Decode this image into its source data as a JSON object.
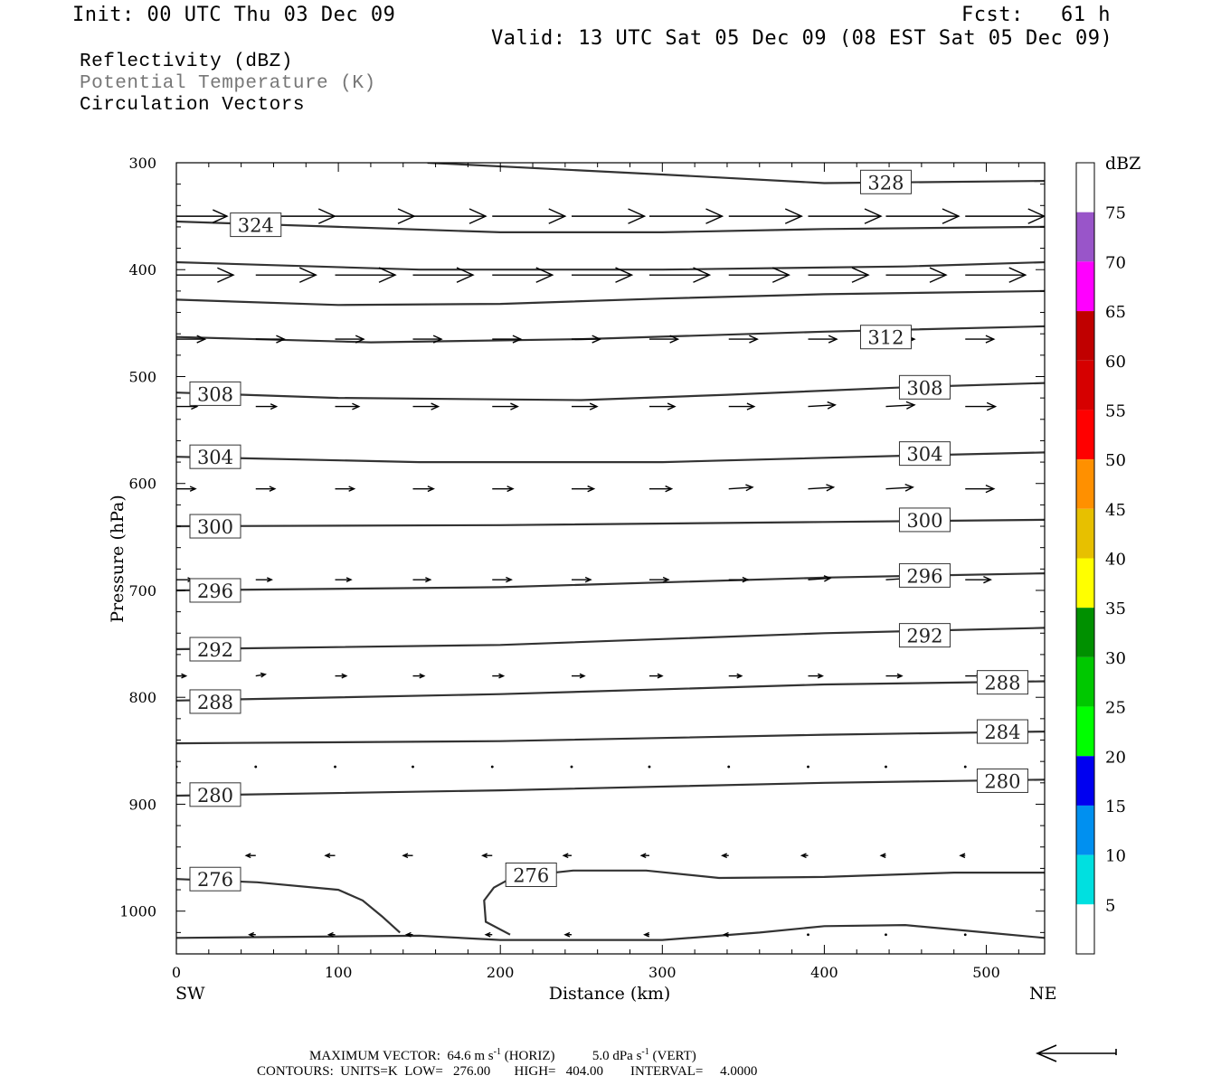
{
  "header": {
    "init": "Init: 00 UTC Thu 03 Dec 09",
    "fcst": "Fcst:   61 h",
    "valid": "Valid: 13 UTC Sat 05 Dec 09 (08 EST Sat 05 Dec 09)",
    "field1": "Reflectivity (dBZ)",
    "field2": "Potential Temperature (K)",
    "field3": "Circulation Vectors"
  },
  "footer": {
    "max_vector_prefix": "MAXIMUM VECTOR:  64.6 m s",
    "max_vector_horiz_unit": "(HORIZ)",
    "max_vector_vert": "5.0 dPa s",
    "max_vector_vert_unit": "(VERT)",
    "exponent": "-1",
    "contours": "CONTOURS:  UNITS=K  LOW=   276.00       HIGH=   404.00        INTERVAL=     4.0000"
  },
  "colors": {
    "contour": "#333333",
    "vector": "#000000",
    "frame": "#000000"
  },
  "chart_data": {
    "type": "contour-cross-section",
    "xlabel": "Distance (km)",
    "ylabel": "Pressure (hPa)",
    "x_ticks": [
      0,
      100,
      200,
      300,
      400,
      500
    ],
    "y_ticks": [
      300,
      400,
      500,
      600,
      700,
      800,
      900,
      1000
    ],
    "xlim": [
      0,
      536
    ],
    "ylim": [
      300,
      1040
    ],
    "y_inverted": true,
    "left_end_label": "SW",
    "right_end_label": "NE",
    "colorbar": {
      "title": "dBZ",
      "levels": [
        5,
        10,
        15,
        20,
        25,
        30,
        35,
        40,
        45,
        50,
        55,
        60,
        65,
        70,
        75
      ],
      "colors": [
        "#ffffff",
        "#00e0e0",
        "#0090f0",
        "#0000f0",
        "#00ff00",
        "#00c800",
        "#009000",
        "#ffff00",
        "#e7c000",
        "#ff9000",
        "#ff0000",
        "#d60000",
        "#c00000",
        "#ff00ff",
        "#9955c9",
        "#ffffff"
      ]
    },
    "isentropes": [
      {
        "theta": 328,
        "points": [
          [
            155,
            300
          ],
          [
            300,
            311
          ],
          [
            400,
            319
          ],
          [
            536,
            317
          ]
        ],
        "labels": [
          [
            438,
            318
          ]
        ]
      },
      {
        "theta": 324,
        "points": [
          [
            0,
            355
          ],
          [
            100,
            360
          ],
          [
            200,
            365
          ],
          [
            300,
            365
          ],
          [
            400,
            362
          ],
          [
            536,
            360
          ]
        ],
        "labels": [
          [
            49,
            358
          ]
        ]
      },
      {
        "theta": 320,
        "points": [
          [
            0,
            393
          ],
          [
            150,
            400
          ],
          [
            300,
            400
          ],
          [
            450,
            397
          ],
          [
            536,
            393
          ]
        ],
        "labels": []
      },
      {
        "theta": 316,
        "points": [
          [
            0,
            428
          ],
          [
            100,
            433
          ],
          [
            200,
            432
          ],
          [
            300,
            427
          ],
          [
            400,
            423
          ],
          [
            536,
            420
          ]
        ],
        "labels": []
      },
      {
        "theta": 312,
        "points": [
          [
            0,
            463
          ],
          [
            120,
            468
          ],
          [
            250,
            465
          ],
          [
            400,
            458
          ],
          [
            536,
            453
          ]
        ],
        "labels": [
          [
            438,
            463
          ]
        ]
      },
      {
        "theta": 308,
        "points": [
          [
            0,
            515
          ],
          [
            100,
            520
          ],
          [
            250,
            522
          ],
          [
            340,
            517
          ],
          [
            450,
            510
          ],
          [
            536,
            506
          ]
        ],
        "labels": [
          [
            24,
            516
          ],
          [
            462,
            510
          ]
        ]
      },
      {
        "theta": 304,
        "points": [
          [
            0,
            575
          ],
          [
            150,
            580
          ],
          [
            300,
            580
          ],
          [
            450,
            574
          ],
          [
            536,
            571
          ]
        ],
        "labels": [
          [
            24,
            575
          ],
          [
            462,
            572
          ]
        ]
      },
      {
        "theta": 300,
        "points": [
          [
            0,
            640
          ],
          [
            200,
            639
          ],
          [
            400,
            636
          ],
          [
            536,
            634
          ]
        ],
        "labels": [
          [
            24,
            640
          ],
          [
            462,
            634
          ]
        ]
      },
      {
        "theta": 296,
        "points": [
          [
            0,
            700
          ],
          [
            200,
            697
          ],
          [
            400,
            688
          ],
          [
            536,
            684
          ]
        ],
        "labels": [
          [
            24,
            700
          ],
          [
            462,
            686
          ]
        ]
      },
      {
        "theta": 292,
        "points": [
          [
            0,
            755
          ],
          [
            200,
            751
          ],
          [
            400,
            740
          ],
          [
            536,
            735
          ]
        ],
        "labels": [
          [
            24,
            755
          ],
          [
            462,
            742
          ]
        ]
      },
      {
        "theta": 288,
        "points": [
          [
            0,
            803
          ],
          [
            200,
            797
          ],
          [
            400,
            788
          ],
          [
            536,
            785
          ]
        ],
        "labels": [
          [
            24,
            804
          ],
          [
            510,
            786
          ]
        ]
      },
      {
        "theta": 284,
        "points": [
          [
            0,
            843
          ],
          [
            200,
            841
          ],
          [
            400,
            835
          ],
          [
            536,
            832
          ]
        ],
        "labels": [
          [
            510,
            832
          ]
        ]
      },
      {
        "theta": 280,
        "points": [
          [
            0,
            892
          ],
          [
            200,
            887
          ],
          [
            400,
            880
          ],
          [
            536,
            877
          ]
        ],
        "labels": [
          [
            24,
            891
          ],
          [
            510,
            878
          ]
        ]
      },
      {
        "theta": 276,
        "points": [
          [
            0,
            970
          ],
          [
            50,
            973
          ],
          [
            100,
            980
          ],
          [
            115,
            990
          ],
          [
            127,
            1005
          ],
          [
            138,
            1020
          ]
        ],
        "labels": [
          [
            24,
            970
          ]
        ]
      },
      {
        "theta": 276,
        "points": [
          [
            206,
            1022
          ],
          [
            191,
            1010
          ],
          [
            190,
            990
          ],
          [
            196,
            978
          ],
          [
            208,
            968
          ],
          [
            245,
            962
          ],
          [
            290,
            962
          ],
          [
            335,
            969
          ],
          [
            400,
            968
          ],
          [
            480,
            964
          ],
          [
            536,
            964
          ]
        ],
        "labels": [
          [
            219,
            966
          ]
        ]
      },
      {
        "theta": 276,
        "points": [
          [
            0,
            1025
          ],
          [
            150,
            1023
          ],
          [
            200,
            1027
          ],
          [
            300,
            1027
          ],
          [
            360,
            1020
          ],
          [
            400,
            1014
          ],
          [
            450,
            1013
          ],
          [
            500,
            1020
          ],
          [
            536,
            1025
          ]
        ],
        "labels": []
      }
    ],
    "vector_rows": [
      {
        "p": 350,
        "x": [
          0,
          49,
          98,
          146,
          195,
          244,
          292,
          341,
          390,
          438,
          487,
          536
        ],
        "u": [
          32,
          50,
          50,
          46,
          46,
          46,
          46,
          46,
          46,
          46,
          50,
          50
        ],
        "w": [
          0,
          0,
          0,
          0,
          0,
          0,
          0,
          0,
          0,
          0,
          0,
          0
        ]
      },
      {
        "p": 405,
        "x": [
          0,
          49,
          98,
          146,
          195,
          244,
          292,
          341,
          390,
          438,
          487,
          536
        ],
        "u": [
          36,
          38,
          38,
          38,
          38,
          38,
          38,
          38,
          38,
          38,
          38,
          38
        ],
        "w": [
          0,
          0,
          0,
          0,
          0,
          0,
          0,
          0,
          0,
          0,
          0,
          0
        ]
      },
      {
        "p": 465,
        "x": [
          0,
          49,
          98,
          146,
          195,
          244,
          292,
          341,
          390,
          438,
          487
        ],
        "u": [
          18,
          18,
          18,
          18,
          18,
          18,
          18,
          18,
          18,
          18,
          18
        ],
        "w": [
          0,
          0,
          0,
          0,
          0,
          0,
          0,
          0,
          0,
          0,
          0
        ]
      },
      {
        "p": 528,
        "x": [
          0,
          49,
          98,
          146,
          195,
          244,
          292,
          341,
          390,
          438,
          487
        ],
        "u": [
          13,
          13,
          15,
          16,
          16,
          16,
          16,
          16,
          17,
          18,
          19
        ],
        "w": [
          0,
          0,
          0,
          0,
          0,
          0,
          0,
          0,
          1,
          1,
          0
        ]
      },
      {
        "p": 605,
        "x": [
          0,
          49,
          98,
          146,
          195,
          244,
          292,
          341,
          390,
          438,
          487
        ],
        "u": [
          12,
          12,
          12,
          13,
          13,
          14,
          14,
          15,
          16,
          17,
          18
        ],
        "w": [
          0,
          0,
          0,
          0,
          0,
          0,
          0,
          1,
          1,
          1,
          0
        ]
      },
      {
        "p": 690,
        "x": [
          0,
          49,
          98,
          146,
          195,
          244,
          292,
          341,
          390,
          438,
          487
        ],
        "u": [
          10,
          10,
          10,
          11,
          12,
          12,
          12,
          12,
          14,
          16,
          16
        ],
        "w": [
          0,
          0,
          0,
          0,
          0,
          0,
          0,
          0,
          1,
          1,
          0
        ]
      },
      {
        "p": 780,
        "x": [
          0,
          49,
          98,
          146,
          195,
          244,
          292,
          341,
          390,
          438,
          487
        ],
        "u": [
          6,
          6,
          7,
          7,
          7,
          8,
          8,
          8,
          9,
          10,
          10
        ],
        "w": [
          0,
          1,
          0,
          0,
          0,
          0,
          0,
          0,
          0,
          0,
          0
        ]
      },
      {
        "p": 865,
        "x": [
          0,
          49,
          98,
          146,
          195,
          244,
          292,
          341,
          390,
          438,
          487
        ],
        "u": [
          1,
          2,
          2,
          1,
          1,
          1,
          1,
          1,
          1,
          1,
          1
        ],
        "w": [
          0,
          0,
          0,
          0,
          0,
          0,
          0,
          0,
          1,
          1,
          0
        ]
      },
      {
        "p": 948,
        "x": [
          0,
          49,
          98,
          146,
          195,
          244,
          292,
          341,
          390,
          438,
          487
        ],
        "u": [
          -6,
          -6,
          -6,
          -6,
          -6,
          -5,
          -5,
          -4,
          -4,
          -3,
          -3
        ],
        "w": [
          0,
          0,
          0,
          0,
          0,
          0,
          0,
          0,
          0,
          0,
          0
        ]
      },
      {
        "p": 1022,
        "x": [
          49,
          98,
          146,
          195,
          244,
          292,
          341,
          390,
          438,
          487
        ],
        "u": [
          -4,
          -4,
          -4,
          -4,
          -4,
          -3,
          -3,
          -2,
          -1,
          -1
        ],
        "w": [
          0,
          0,
          0,
          0,
          0,
          0,
          0,
          0,
          0,
          0
        ]
      }
    ]
  }
}
